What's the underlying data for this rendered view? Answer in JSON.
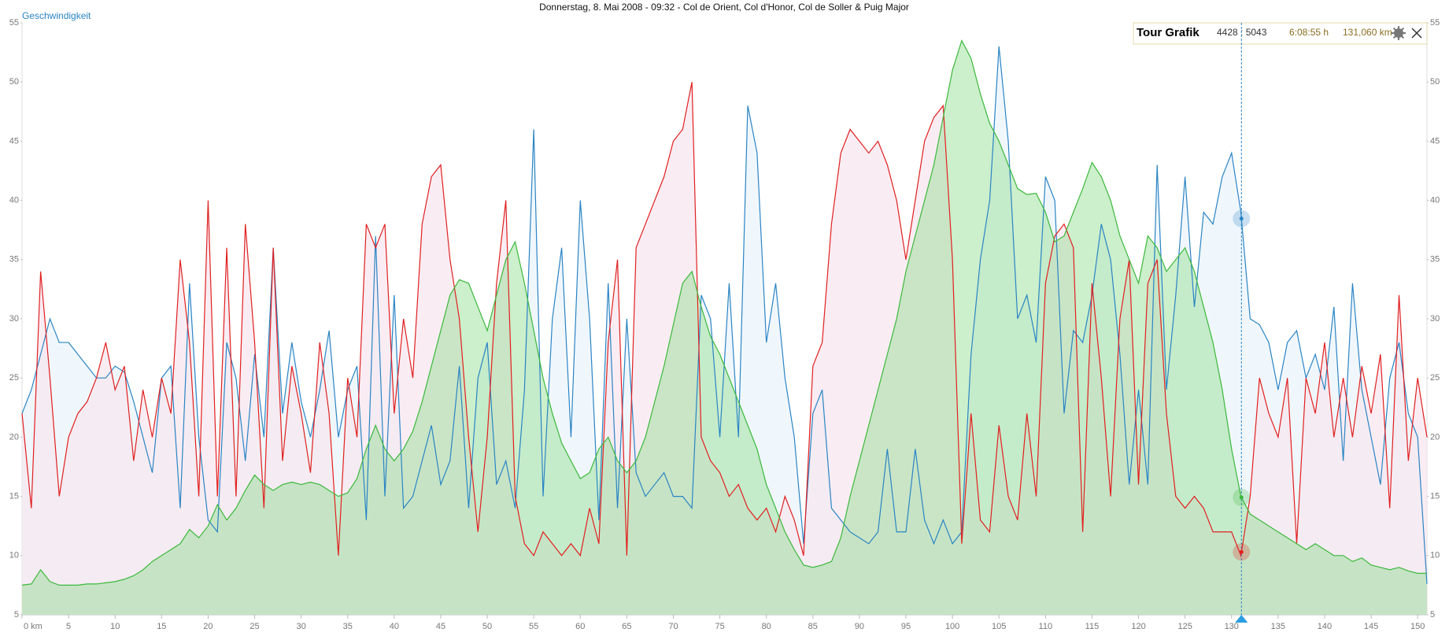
{
  "chart_data": {
    "type": "line",
    "title": "Donnerstag, 8. Mai 2008 - 09:32 - Col de Orient, Col d'Honor, Col de Soller & Puig Major",
    "ylabel": "Geschwindigkeit",
    "xlim": [
      0,
      151
    ],
    "ylim": [
      5,
      55
    ],
    "xticks": [
      {
        "value": 0,
        "label": "0 km"
      },
      5,
      10,
      15,
      20,
      25,
      30,
      35,
      40,
      45,
      50,
      55,
      60,
      65,
      70,
      75,
      80,
      85,
      90,
      95,
      100,
      105,
      110,
      115,
      120,
      125,
      130,
      135,
      140,
      145,
      150
    ],
    "yticks": [
      5,
      10,
      15,
      20,
      25,
      30,
      35,
      40,
      45,
      50,
      55
    ],
    "x": [
      0,
      1,
      2,
      3,
      4,
      5,
      6,
      7,
      8,
      9,
      10,
      11,
      12,
      13,
      14,
      15,
      16,
      17,
      18,
      19,
      20,
      21,
      22,
      23,
      24,
      25,
      26,
      27,
      28,
      29,
      30,
      31,
      32,
      33,
      34,
      35,
      36,
      37,
      38,
      39,
      40,
      41,
      42,
      43,
      44,
      45,
      46,
      47,
      48,
      49,
      50,
      51,
      52,
      53,
      54,
      55,
      56,
      57,
      58,
      59,
      60,
      61,
      62,
      63,
      64,
      65,
      66,
      67,
      68,
      69,
      70,
      71,
      72,
      73,
      74,
      75,
      76,
      77,
      78,
      79,
      80,
      81,
      82,
      83,
      84,
      85,
      86,
      87,
      88,
      89,
      90,
      91,
      92,
      93,
      94,
      95,
      96,
      97,
      98,
      99,
      100,
      101,
      102,
      103,
      104,
      105,
      106,
      107,
      108,
      109,
      110,
      111,
      112,
      113,
      114,
      115,
      116,
      117,
      118,
      119,
      120,
      121,
      122,
      123,
      124,
      125,
      126,
      127,
      128,
      129,
      130,
      131,
      132,
      133,
      134,
      135,
      136,
      137,
      138,
      139,
      140,
      141,
      142,
      143,
      144,
      145,
      146,
      147,
      148,
      149,
      150,
      151
    ],
    "series": [
      {
        "name": "Geschwindigkeit",
        "color": "#2a84c4",
        "fill": "#eaf3fb",
        "values": [
          22,
          24,
          27,
          30,
          28,
          28,
          27,
          26,
          25,
          25,
          26,
          25.5,
          23,
          20,
          17,
          25,
          26,
          14,
          33,
          20,
          13,
          12,
          28,
          25,
          18,
          27,
          20,
          36,
          22,
          28,
          23,
          20,
          24,
          29,
          20,
          24,
          26,
          13,
          37,
          15,
          32,
          14,
          15,
          18,
          21,
          16,
          18,
          26,
          14,
          25,
          28,
          16,
          18,
          14,
          24,
          46,
          15,
          30,
          36,
          20,
          40,
          30,
          13,
          33,
          14,
          30,
          17,
          15,
          16,
          17,
          15,
          15,
          14,
          32,
          30,
          20,
          33,
          20,
          48,
          44,
          28,
          33,
          25,
          20,
          11,
          22,
          24,
          14,
          13,
          12,
          11.5,
          11,
          12,
          19,
          12,
          12,
          19,
          13,
          11,
          13,
          11,
          12,
          27,
          35,
          40,
          53,
          45,
          30,
          32,
          28,
          42,
          40,
          22,
          29,
          28,
          32,
          38,
          35,
          27,
          16,
          24,
          16,
          43,
          24,
          32,
          42,
          31,
          39,
          38,
          42,
          44,
          39,
          30,
          29.5,
          28,
          24,
          28,
          29,
          25,
          27,
          24,
          31,
          18,
          33,
          24,
          20,
          16,
          25,
          28,
          22,
          20,
          7.6
        ]
      },
      {
        "color": "#e02020",
        "fill": "#f7e6ee",
        "values": [
          22,
          14,
          34,
          25,
          15,
          20,
          22,
          23,
          25,
          28,
          24,
          26,
          18,
          24,
          20,
          25,
          22,
          35,
          28,
          15,
          40,
          15,
          36,
          15,
          38,
          28,
          14,
          36,
          18,
          26,
          22,
          17,
          28,
          22,
          10,
          25,
          20,
          38,
          36,
          38,
          22,
          30,
          25,
          38,
          42,
          43,
          35,
          30,
          20,
          12,
          20,
          33,
          40,
          15,
          11,
          10,
          12,
          11,
          10,
          11,
          10,
          14,
          11,
          28,
          35,
          10,
          36,
          38,
          40,
          42,
          45,
          46,
          50,
          20,
          18,
          17,
          15,
          16,
          14,
          13,
          14,
          12,
          15,
          13,
          10,
          26,
          28,
          38,
          44,
          46,
          45,
          44,
          45,
          43,
          40,
          35,
          40,
          45,
          47,
          48,
          35,
          11,
          22,
          13,
          12,
          21,
          15,
          13,
          22,
          15,
          33,
          37,
          38,
          36,
          12,
          33,
          25,
          15,
          30,
          35,
          16,
          33,
          35,
          22,
          15,
          14,
          15,
          14,
          12,
          12,
          12,
          10,
          15,
          25,
          22,
          20,
          25,
          11,
          25,
          22,
          28,
          20,
          25,
          20,
          26,
          22,
          27,
          14,
          32,
          18,
          25,
          20
        ]
      },
      {
        "color": "#3cb83c",
        "fill": "#8fdc8f",
        "values": [
          7.5,
          7.6,
          8.8,
          7.8,
          7.5,
          7.5,
          7.5,
          7.6,
          7.6,
          7.7,
          7.8,
          8,
          8.3,
          8.8,
          9.5,
          10,
          10.5,
          11,
          12.2,
          11.5,
          12.5,
          14.3,
          13,
          14,
          15.5,
          16.8,
          16,
          15.5,
          16,
          16.2,
          16,
          16.2,
          16,
          15.5,
          15,
          15.3,
          16.5,
          19,
          21,
          19,
          18,
          19,
          20.5,
          23,
          26,
          29,
          32,
          33.3,
          33,
          31,
          29,
          32,
          35,
          36.5,
          33,
          29,
          25,
          22,
          19.5,
          18,
          16.5,
          17,
          19,
          20,
          18,
          17,
          18,
          20,
          23,
          26,
          29.5,
          33,
          34,
          31,
          28.5,
          27,
          25,
          23,
          21,
          19,
          16,
          14,
          12,
          10.5,
          9.2,
          9,
          9.2,
          9.5,
          11.5,
          15,
          18,
          21,
          24,
          27,
          30,
          34,
          37,
          40,
          43,
          47,
          51,
          53.5,
          52,
          49,
          46.5,
          45,
          43,
          41,
          40.5,
          40.6,
          39,
          36.5,
          37,
          39,
          41,
          43.2,
          42,
          40,
          37,
          35,
          33,
          37,
          36,
          34,
          35,
          36,
          34,
          31,
          28,
          24,
          19,
          15,
          13.5,
          13,
          12.5,
          12,
          11.5,
          11,
          10.5,
          11,
          10.5,
          10,
          10,
          9.5,
          9.8,
          9.2,
          9,
          8.8,
          9,
          8.7,
          8.5,
          8.5
        ]
      }
    ],
    "tooltip": {
      "title": "Tour Grafik",
      "points": "4428 : 5043",
      "time": "6:08:55 h",
      "distance": {
        "value": 131.06,
        "label": "131,060 km"
      }
    }
  }
}
